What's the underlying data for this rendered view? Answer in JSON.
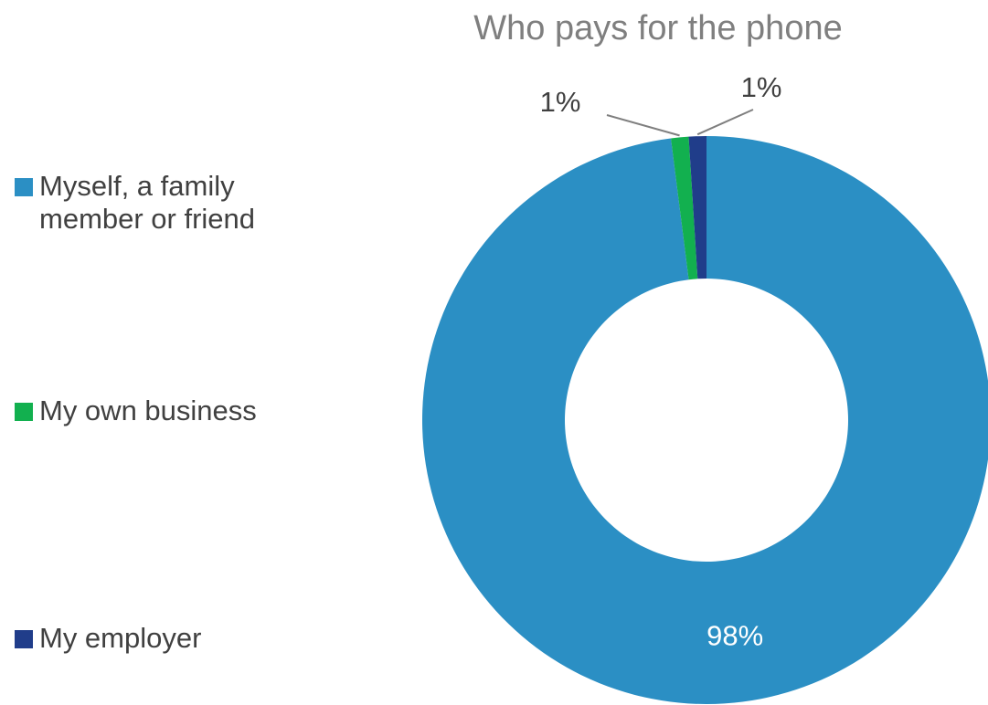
{
  "chart_data": {
    "type": "pie",
    "variant": "donut",
    "title": "Who pays for the phone",
    "categories": [
      "Myself, a family member or friend",
      "My own business",
      "My employer"
    ],
    "values": [
      98,
      1,
      1
    ],
    "value_labels": [
      "98%",
      "1%",
      "1%"
    ],
    "colors": [
      "#2b8fc4",
      "#12b04f",
      "#203d8a"
    ],
    "legend_position": "left"
  }
}
